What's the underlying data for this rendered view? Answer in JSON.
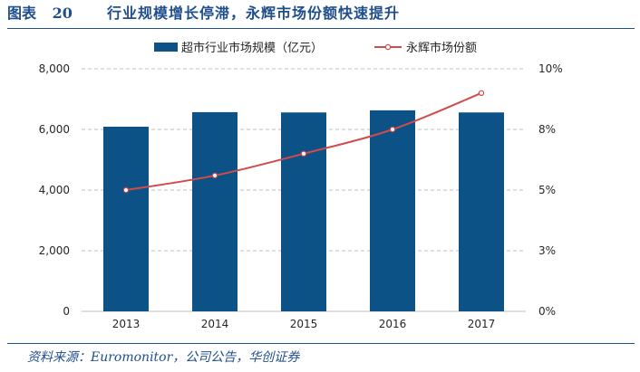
{
  "header": {
    "label": "图表 20",
    "title": "行业规模增长停滞，永辉市场份额快速提升"
  },
  "footer": {
    "source": "资料来源：Euromonitor，公司公告，华创证券"
  },
  "colors": {
    "accent": "#1f4e8c",
    "bar": "#0d5286",
    "line": "#d14b4b",
    "marker_fill": "#ffffff",
    "grid": "#bfbfbf",
    "text": "#262626"
  },
  "chart_data": {
    "type": "bar",
    "categories": [
      "2013",
      "2014",
      "2015",
      "2016",
      "2017"
    ],
    "series": [
      {
        "name": "超市行业市场规模（亿元）",
        "type": "bar",
        "axis": "left",
        "values": [
          6090,
          6570,
          6560,
          6630,
          6560
        ]
      },
      {
        "name": "永辉市场份额",
        "type": "line",
        "axis": "right",
        "values": [
          5.0,
          5.6,
          6.5,
          7.5,
          9.0
        ]
      }
    ],
    "y_left": {
      "ylim": [
        0,
        8000
      ],
      "ticks": [
        {
          "value": 0,
          "label": "0"
        },
        {
          "value": 2000,
          "label": "2,000"
        },
        {
          "value": 4000,
          "label": "4,000"
        },
        {
          "value": 6000,
          "label": "6,000"
        },
        {
          "value": 8000,
          "label": "8,000"
        }
      ]
    },
    "y_right": {
      "ylim": [
        0,
        10
      ],
      "ticks": [
        {
          "value": 0,
          "label": "0%"
        },
        {
          "value": 2.5,
          "label": "3%"
        },
        {
          "value": 5,
          "label": "5%"
        },
        {
          "value": 7.5,
          "label": "8%"
        },
        {
          "value": 10,
          "label": "10%"
        }
      ]
    },
    "grid": "horizontal-dashed",
    "legend": "top-center"
  }
}
